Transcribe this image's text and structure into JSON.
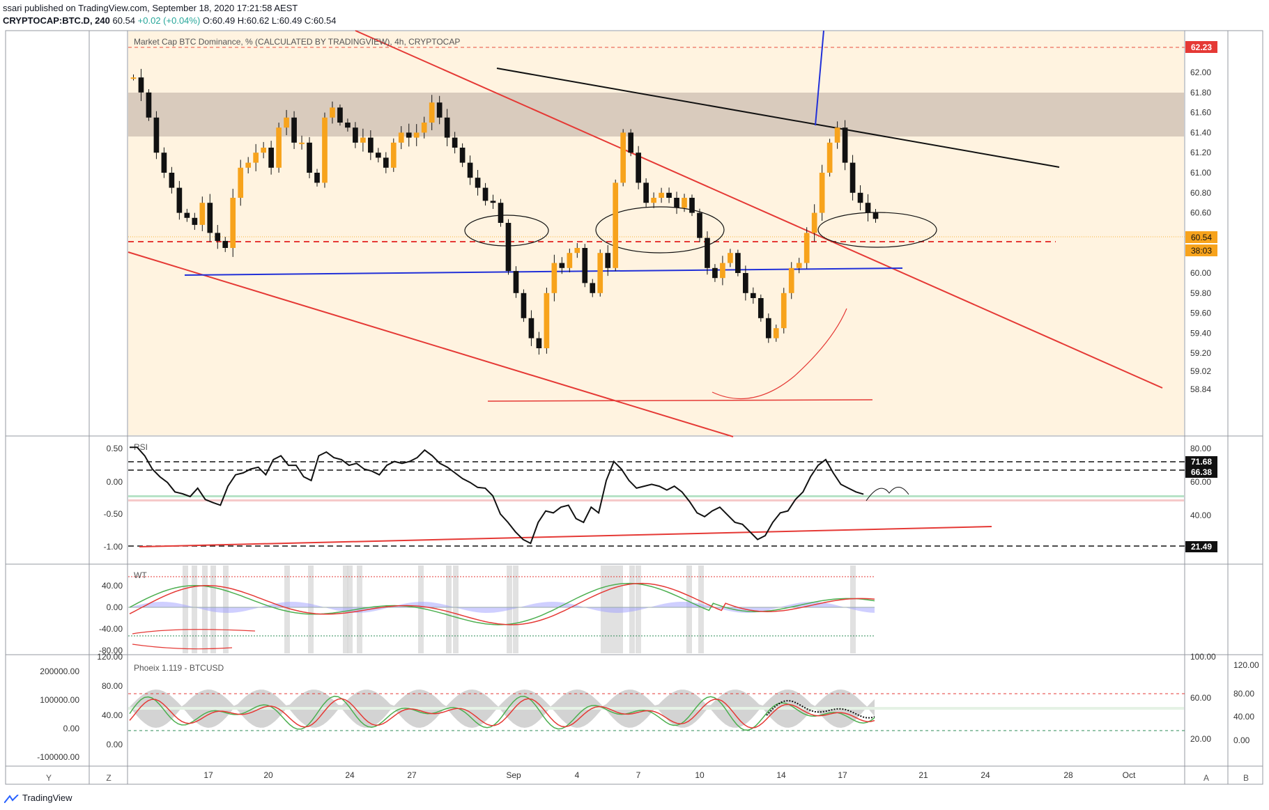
{
  "header": {
    "publisher": "ssari published on TradingView.com, September 18, 2020 17:21:58 AEST",
    "symbol": "CRYPTOCAP:BTC.D, 240",
    "last": "60.54",
    "change": "+0.02 (+0.04%)",
    "ohlc": "O:60.49 H:60.62 L:60.49 C:60.54"
  },
  "main_pane": {
    "title": "Market Cap BTC Dominance, % (CALCULATED BY TRADINGVIEW), 4h, CRYPTOCAP",
    "ticks": [
      "62.00",
      "61.80",
      "61.60",
      "61.40",
      "61.20",
      "61.00",
      "60.80",
      "60.60",
      "60.20",
      "60.00",
      "59.80",
      "59.60",
      "59.40",
      "59.20",
      "59.02",
      "58.84"
    ],
    "tag_resistance": "62.23",
    "tag_price": "60.54",
    "tag_countdown": "38:03"
  },
  "rsi_pane": {
    "label": "RSI",
    "left_ticks": [
      "0.50",
      "0.00",
      "-0.50",
      "-1.00"
    ],
    "right_ticks": [
      "80.00",
      "60.00",
      "40.00"
    ],
    "tags": [
      "71.68",
      "66.38",
      "21.49"
    ]
  },
  "wt_pane": {
    "label": "WT",
    "left_ticks": [
      "40.00",
      "0.00",
      "-40.00",
      "-80.00"
    ]
  },
  "phoeix_pane": {
    "label": "Phoeix 1.119 - BTCUSD",
    "left_outer_ticks": [
      "200000.00",
      "100000.00",
      "0.00",
      "-100000.00"
    ],
    "left_inner_ticks": [
      "120.00",
      "80.00",
      "40.00",
      "0.00"
    ],
    "right_inner_ticks": [
      "100.00",
      "60.00",
      "20.00"
    ],
    "right_outer_ticks": [
      "120.00",
      "80.00",
      "40.00",
      "0.00"
    ]
  },
  "time_axis": [
    "17",
    "20",
    "24",
    "27",
    "Sep",
    "4",
    "7",
    "10",
    "14",
    "17",
    "21",
    "24",
    "28",
    "Oct"
  ],
  "buttons": {
    "y": "Y",
    "z": "Z",
    "a": "A",
    "b": "B"
  },
  "footer": {
    "brand": "TradingView"
  },
  "chart_data": {
    "type": "candlestick",
    "title": "Market Cap BTC Dominance, % (CALCULATED BY TRADINGVIEW), 4h, CRYPTOCAP",
    "ylim": [
      58.84,
      62.23
    ],
    "last_close": 60.54,
    "close_series": [
      61.95,
      61.8,
      61.55,
      61.2,
      61.0,
      60.85,
      60.6,
      60.55,
      60.48,
      60.7,
      60.4,
      60.32,
      60.25,
      60.75,
      61.05,
      61.1,
      61.2,
      61.25,
      61.05,
      61.45,
      61.55,
      61.3,
      61.3,
      61.0,
      60.9,
      61.55,
      61.65,
      61.5,
      61.45,
      61.3,
      61.35,
      61.2,
      61.15,
      61.05,
      61.3,
      61.4,
      61.35,
      61.4,
      61.5,
      61.7,
      61.55,
      61.35,
      61.25,
      61.1,
      60.95,
      60.85,
      60.72,
      60.7,
      60.5,
      60.02,
      59.8,
      59.55,
      59.35,
      59.25,
      59.8,
      60.1,
      60.05,
      60.2,
      60.25,
      59.9,
      59.8,
      60.2,
      60.05,
      60.9,
      61.4,
      61.2,
      60.9,
      60.7,
      60.75,
      60.8,
      60.75,
      60.65,
      60.75,
      60.6,
      60.35,
      60.05,
      59.95,
      60.1,
      60.2,
      60.0,
      59.8,
      59.75,
      59.55,
      59.35,
      59.45,
      59.8,
      60.05,
      60.1,
      60.4,
      60.6,
      61.0,
      61.3,
      61.45,
      61.1,
      60.8,
      60.7,
      60.6,
      60.54
    ],
    "hlines": [
      62.23,
      60.5
    ],
    "resistance_zone": [
      61.43,
      61.82
    ],
    "rsi": {
      "levels": [
        71.68,
        66.38,
        21.49
      ],
      "ylim": [
        20,
        85
      ]
    },
    "wt": {
      "ylim": [
        -80,
        60
      ],
      "bands": [
        53,
        -53
      ]
    },
    "phoeix": {
      "ylim": [
        -10,
        130
      ]
    }
  }
}
